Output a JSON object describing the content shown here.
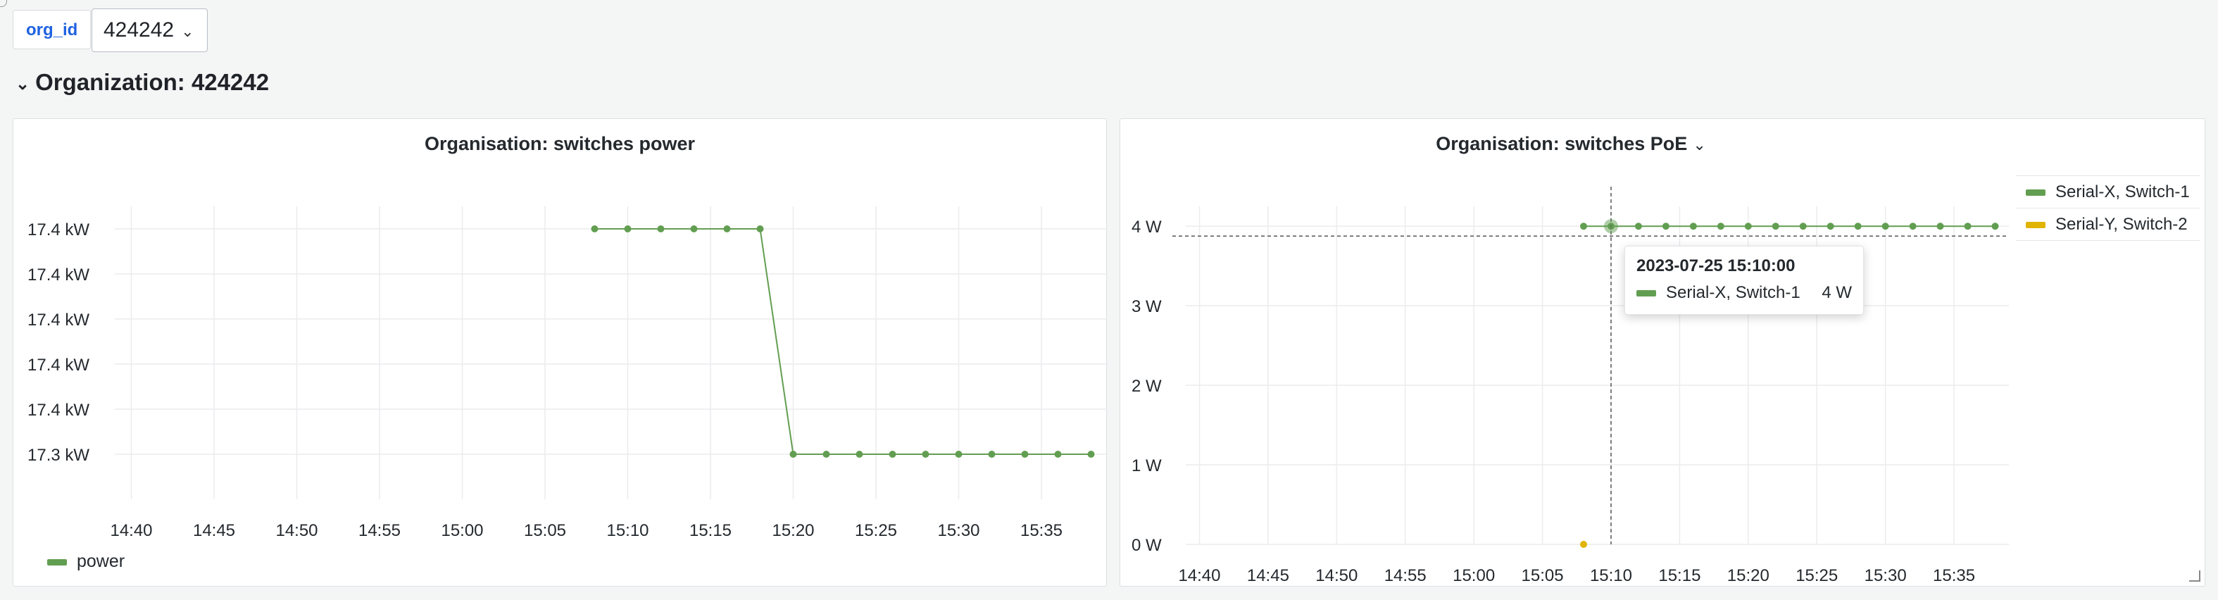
{
  "variables": {
    "label": "org_id",
    "value": "424242"
  },
  "row": {
    "title": "Organization: 424242"
  },
  "panels": {
    "power": {
      "title": "Organisation: switches power",
      "legend": [
        {
          "name": "power",
          "color": "#629e51"
        }
      ]
    },
    "poe": {
      "title": "Organisation: switches PoE",
      "legend": [
        {
          "name": "Serial-X, Switch-1",
          "color": "#629e51"
        },
        {
          "name": "Serial-Y, Switch-2",
          "color": "#e0b400"
        }
      ],
      "tooltip": {
        "time": "2023-07-25 15:10:00",
        "series": "Serial-X, Switch-1",
        "value": "4 W"
      }
    }
  },
  "chart_data": [
    {
      "type": "line",
      "title": "Organisation: switches power",
      "x_ticks": [
        "14:40",
        "14:45",
        "14:50",
        "14:55",
        "15:00",
        "15:05",
        "15:10",
        "15:15",
        "15:20",
        "15:25",
        "15:30",
        "15:35"
      ],
      "y_ticks": [
        "17.3 kW",
        "17.4 kW",
        "17.4 kW",
        "17.4 kW",
        "17.4 kW",
        "17.4 kW"
      ],
      "x_range": [
        "14:39",
        "15:39"
      ],
      "grid": true,
      "legend_position": "bottom",
      "series": [
        {
          "name": "power",
          "color": "#629e51",
          "x": [
            "15:08",
            "15:10",
            "15:12",
            "15:14",
            "15:16",
            "15:18",
            "15:20",
            "15:22",
            "15:24",
            "15:26",
            "15:28",
            "15:30",
            "15:32",
            "15:34",
            "15:36",
            "15:38"
          ],
          "y": [
            17.42,
            17.42,
            17.42,
            17.42,
            17.42,
            17.42,
            17.32,
            17.32,
            17.32,
            17.32,
            17.32,
            17.32,
            17.32,
            17.32,
            17.32,
            17.32
          ]
        }
      ]
    },
    {
      "type": "line",
      "title": "Organisation: switches PoE",
      "x_ticks": [
        "14:40",
        "14:45",
        "14:50",
        "14:55",
        "15:00",
        "15:05",
        "15:10",
        "15:15",
        "15:20",
        "15:25",
        "15:30",
        "15:35"
      ],
      "y_ticks": [
        "0 W",
        "1 W",
        "2 W",
        "3 W",
        "4 W"
      ],
      "x_range": [
        "14:39",
        "15:39"
      ],
      "ylim": [
        0,
        4
      ],
      "grid": true,
      "legend_position": "right",
      "series": [
        {
          "name": "Serial-X, Switch-1",
          "color": "#629e51",
          "x": [
            "15:08",
            "15:10",
            "15:12",
            "15:14",
            "15:16",
            "15:18",
            "15:20",
            "15:22",
            "15:24",
            "15:26",
            "15:28",
            "15:30",
            "15:32",
            "15:34",
            "15:36",
            "15:38"
          ],
          "y": [
            4,
            4,
            4,
            4,
            4,
            4,
            4,
            4,
            4,
            4,
            4,
            4,
            4,
            4,
            4,
            4
          ]
        },
        {
          "name": "Serial-Y, Switch-2",
          "color": "#e0b400",
          "x": [
            "15:08"
          ],
          "y": [
            0
          ]
        }
      ],
      "crosshair_x": "15:10"
    }
  ]
}
